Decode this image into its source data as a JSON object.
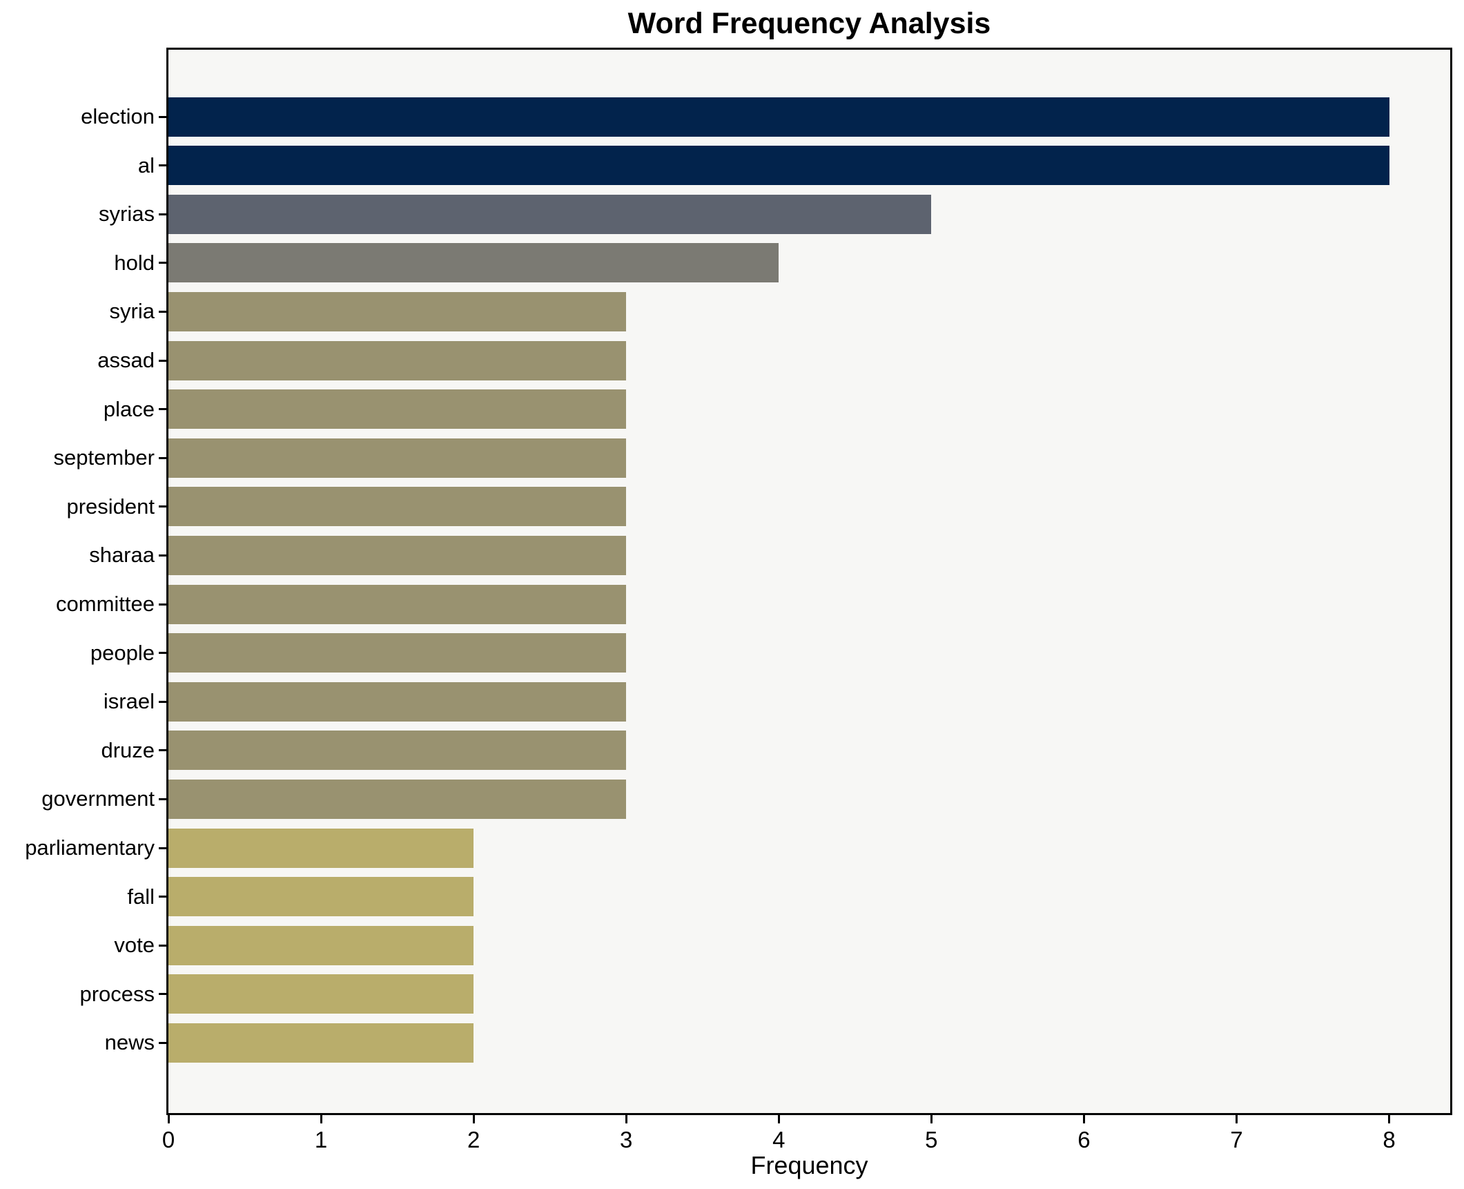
{
  "figure": {
    "background": "#ffffff"
  },
  "chart_data": {
    "type": "bar",
    "orientation": "horizontal",
    "title": "Word Frequency Analysis",
    "xlabel": "Frequency",
    "ylabel": "",
    "xlim": [
      0,
      8.4
    ],
    "x_ticks": [
      0,
      1,
      2,
      3,
      4,
      5,
      6,
      7,
      8
    ],
    "grid": false,
    "legend": "none",
    "plot_background": "#f7f7f5",
    "spine_color": "#000000",
    "categories": [
      "election",
      "al",
      "syrias",
      "hold",
      "syria",
      "assad",
      "place",
      "september",
      "president",
      "sharaa",
      "committee",
      "people",
      "israel",
      "druze",
      "government",
      "parliamentary",
      "fall",
      "vote",
      "process",
      "news"
    ],
    "values": [
      8,
      8,
      5,
      4,
      3,
      3,
      3,
      3,
      3,
      3,
      3,
      3,
      3,
      3,
      3,
      2,
      2,
      2,
      2,
      2
    ],
    "bar_colors": [
      "#02234c",
      "#02234c",
      "#5d636f",
      "#7b7a73",
      "#999270",
      "#999270",
      "#999270",
      "#999270",
      "#999270",
      "#999270",
      "#999270",
      "#999270",
      "#999270",
      "#999270",
      "#999270",
      "#b9ad6b",
      "#b9ad6b",
      "#b9ad6b",
      "#b9ad6b",
      "#b9ad6b"
    ]
  }
}
